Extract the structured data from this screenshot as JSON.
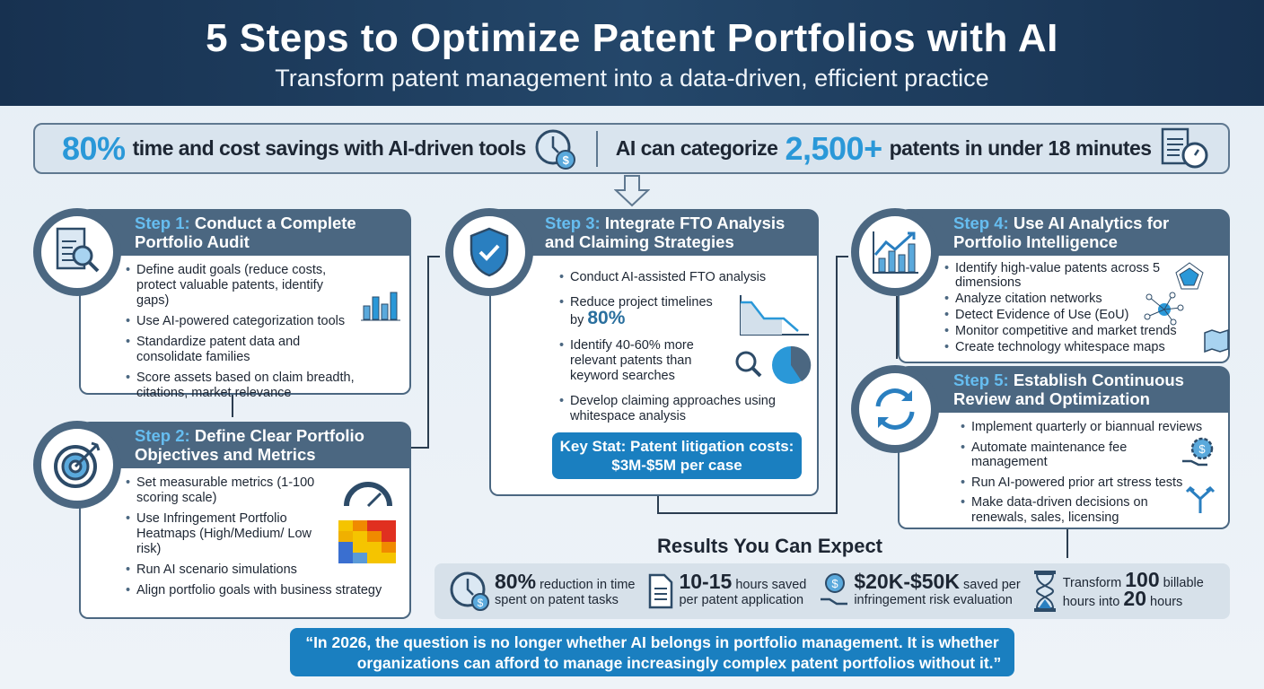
{
  "header": {
    "title": "5 Steps to Optimize Patent Portfolios with AI",
    "subtitle": "Transform patent management into a data-driven, efficient practice"
  },
  "stats": {
    "left_value": "80%",
    "left_text": "time and cost savings with AI-driven tools",
    "right_pre": "AI can categorize",
    "right_value": "2,500+",
    "right_text": "patents in under 18 minutes"
  },
  "steps": [
    {
      "label": "Step 1:",
      "title": "Conduct a Complete Portfolio Audit",
      "items": [
        "Define audit goals (reduce costs, protect valuable patents, identify gaps)",
        "Use AI-powered categorization tools",
        "Standardize patent data and consolidate families",
        "Score assets based on claim breadth, citations, market relevance"
      ]
    },
    {
      "label": "Step 2:",
      "title": "Define Clear Portfolio Objectives and Metrics",
      "items": [
        "Set measurable metrics (1-100 scoring scale)",
        "Use Infringement Portfolio Heatmaps (High/Medium/ Low risk)",
        "Run AI scenario simulations",
        "Align portfolio goals with business strategy"
      ]
    },
    {
      "label": "Step 3:",
      "title": "Integrate FTO Analysis and Claiming Strategies",
      "items": [
        "Conduct AI-assisted FTO analysis",
        "Reduce project timelines by",
        "Identify 40-60% more relevant patents than keyword searches",
        "Develop claiming approaches using whitespace analysis"
      ],
      "highlight": "80%",
      "key_stat": "Key Stat: Patent litigation costs: $3M-$5M per case"
    },
    {
      "label": "Step 4:",
      "title": "Use AI Analytics for Portfolio Intelligence",
      "items": [
        "Identify high-value patents across 5 dimensions",
        "Analyze citation networks",
        "Detect Evidence of Use (EoU)",
        "Monitor competitive and market trends",
        "Create technology whitespace maps"
      ]
    },
    {
      "label": "Step 5:",
      "title": "Establish Continuous Review and Optimization",
      "items": [
        "Implement quarterly or biannual reviews",
        "Automate maintenance fee management",
        "Run AI-powered prior art stress tests",
        "Make data-driven decisions on renewals, sales, licensing"
      ]
    }
  ],
  "results": {
    "title": "Results You Can Expect",
    "items": [
      {
        "value": "80%",
        "text1": "reduction in time",
        "text2": "spent on patent tasks"
      },
      {
        "value": "10-15",
        "text1": "hours saved",
        "text2": "per patent application"
      },
      {
        "value": "$20K-$50K",
        "text1": "saved per",
        "text2": "infringement risk evaluation"
      },
      {
        "pre": "Transform",
        "value": "100",
        "text1": "billable",
        "text2a": "hours into",
        "value2": "20",
        "text2b": "hours"
      }
    ]
  },
  "quote": {
    "line1": "“In 2026, the question is no longer whether AI belongs in portfolio management. It is whether",
    "line2": "organizations can afford to manage increasingly complex patent portfolios without it.”"
  },
  "colors": {
    "navy": "#173150",
    "slate": "#4b6781",
    "accent": "#2a98d8",
    "quote_bg": "#1a7fc0"
  }
}
